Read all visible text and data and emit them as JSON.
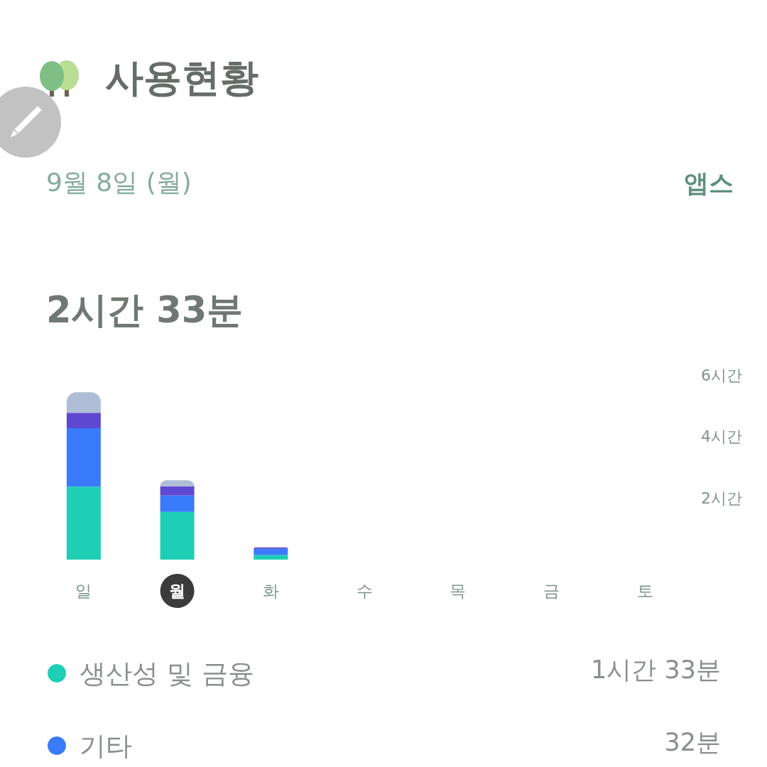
{
  "chart_data": {
    "type": "bar",
    "title": "사용현황",
    "subtitle": "9월 8일 (월)",
    "annotations": [
      "앱스",
      "2시간 33분",
      "1시간 33분",
      "32분"
    ],
    "categories": [
      "일",
      "월",
      "화",
      "수",
      "목",
      "금",
      "토"
    ],
    "series": [
      {
        "name": "생산성 및 금융",
        "color": "#1ecfb5",
        "values": [
          2.37,
          1.55,
          0.15,
          null,
          null,
          null,
          null
        ]
      },
      {
        "name": "기타",
        "color": "#3a7bfb",
        "values": [
          1.9,
          0.53,
          0.2,
          null,
          null,
          null,
          null
        ]
      },
      {
        "color": "#5f48d1",
        "values": [
          0.5,
          0.3,
          0.05,
          null,
          null,
          null,
          null
        ]
      },
      {
        "color": "#b0bdd6",
        "values": [
          0.67,
          0.2,
          null,
          null,
          null,
          null,
          null
        ]
      }
    ],
    "stacked": true,
    "ylim": [
      0,
      6
    ],
    "yticks": [
      {
        "value": 2,
        "label": "2시간"
      },
      {
        "value": 4,
        "label": "4시간"
      },
      {
        "value": 6,
        "label": "6시간"
      }
    ],
    "grid": false,
    "legend": "bottom"
  }
}
